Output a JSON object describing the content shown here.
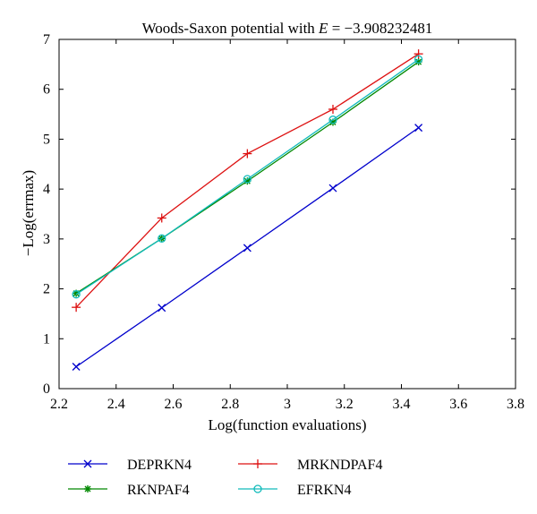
{
  "chart_data": {
    "type": "line",
    "title_prefix": "Woods-Saxon potential with ",
    "title_var": "E",
    "title_suffix": " = −3.908232481",
    "xlabel": "Log(function evaluations)",
    "ylabel": "−Log(errmax)",
    "xlim": [
      2.2,
      3.8
    ],
    "ylim": [
      0,
      7
    ],
    "xticks": [
      2.2,
      2.4,
      2.6,
      2.8,
      3,
      3.2,
      3.4,
      3.6,
      3.8
    ],
    "xtick_labels": [
      "2.2",
      "2.4",
      "2.6",
      "2.8",
      "3",
      "3.2",
      "3.4",
      "3.6",
      "3.8"
    ],
    "yticks": [
      0,
      1,
      2,
      3,
      4,
      5,
      6,
      7
    ],
    "ytick_labels": [
      "0",
      "1",
      "2",
      "3",
      "4",
      "5",
      "6",
      "7"
    ],
    "grid": false,
    "legend_position": "bottom, outside plot, two columns",
    "x": [
      2.26,
      2.56,
      2.86,
      3.16,
      3.46
    ],
    "series": [
      {
        "name": "DEPRKN4",
        "color": "#0000cc",
        "marker": "x",
        "values": [
          0.44,
          1.62,
          2.82,
          4.02,
          5.23
        ]
      },
      {
        "name": "MRKNDPAF4",
        "color": "#dd1111",
        "marker": "plus",
        "values": [
          1.63,
          3.42,
          4.71,
          5.6,
          6.71
        ]
      },
      {
        "name": "RKNPAF4",
        "color": "#008800",
        "marker": "asterisk",
        "values": [
          1.91,
          3.01,
          4.16,
          5.34,
          6.55
        ]
      },
      {
        "name": "EFRKN4",
        "color": "#11bbbb",
        "marker": "circle",
        "values": [
          1.89,
          3.01,
          4.2,
          5.39,
          6.6
        ]
      }
    ]
  }
}
